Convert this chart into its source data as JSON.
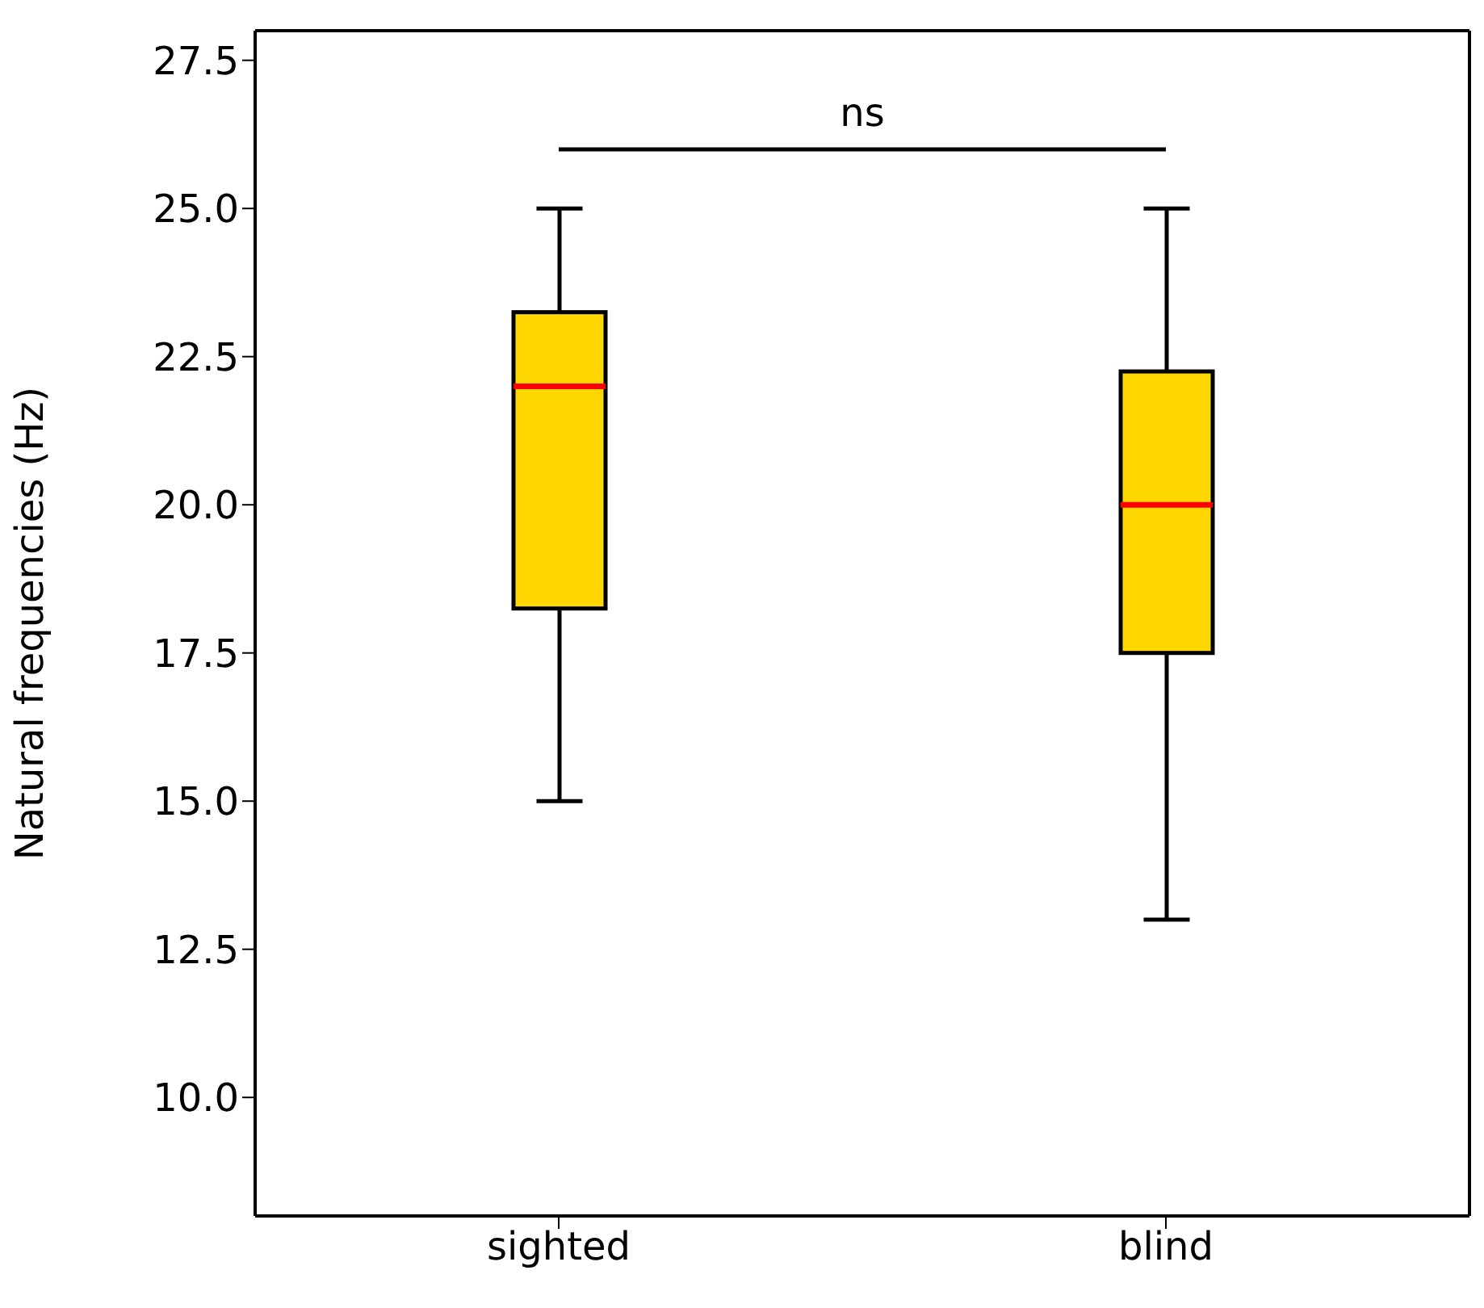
{
  "chart_data": {
    "type": "box",
    "ylabel": "Natural frequencies (Hz)",
    "categories": [
      "sighted",
      "blind"
    ],
    "color": "#ffd700",
    "boxes": [
      {
        "low": 15,
        "q1": 18.25,
        "median": 22,
        "q3": 23.25,
        "high": 25
      },
      {
        "low": 13,
        "q1": 17.5,
        "median": 20,
        "q3": 22.25,
        "high": 25
      }
    ],
    "ylim": [
      8,
      28
    ],
    "yticks": [
      {
        "value": 10,
        "label": "10.0"
      },
      12.5,
      {
        "value": 15,
        "label": "15.0"
      },
      17.5,
      {
        "value": 20,
        "label": "20.0"
      },
      22.5,
      {
        "value": 25,
        "label": "25.0"
      },
      27.5
    ],
    "annotations": [
      "ns"
    ]
  }
}
